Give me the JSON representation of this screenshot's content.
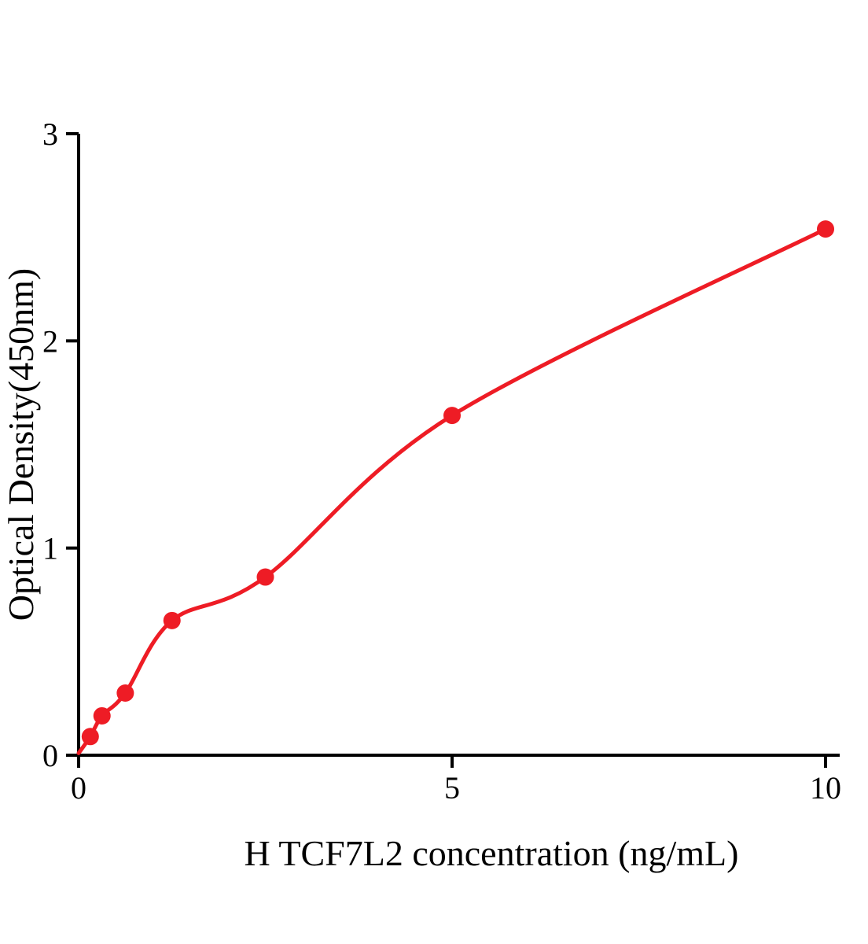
{
  "chart_data": {
    "type": "scatter",
    "title": "",
    "xlabel": "H TCF7L2 concentration (ng/mL)",
    "ylabel": "Optical Density(450nm)",
    "x": [
      0.156,
      0.313,
      0.625,
      1.25,
      2.5,
      5,
      10
    ],
    "y": [
      0.09,
      0.19,
      0.3,
      0.65,
      0.86,
      1.64,
      2.54
    ],
    "curve_start_x": 0,
    "curve_start_y": 0.01,
    "xlim": [
      0,
      10.2
    ],
    "ylim": [
      0,
      3
    ],
    "xticks": [
      0,
      5,
      10
    ],
    "xtick_labels": [
      "0",
      "5",
      "10"
    ],
    "yticks": [
      0,
      1,
      2,
      3
    ],
    "ytick_labels": [
      "0",
      "1",
      "2",
      "3"
    ],
    "point_color": "#ee1c25",
    "curve_color": "#ee1c25",
    "axis_color": "#000000",
    "grid": false,
    "legend": null
  }
}
